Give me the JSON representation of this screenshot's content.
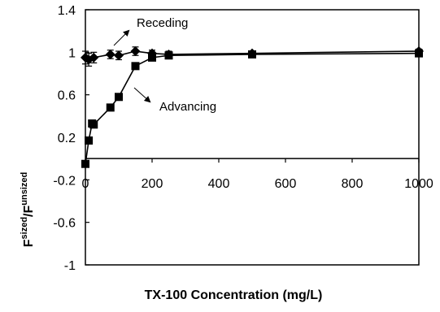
{
  "chart_data": {
    "type": "line",
    "title": "",
    "xlabel": "TX-100 Concentration (mg/L)",
    "ylabel": "F",
    "ylabel_sup1": "sized",
    "ylabel_slash": "/",
    "ylabel_main2": "F",
    "ylabel_sup2": "unsized",
    "xlim": [
      0,
      1000
    ],
    "ylim": [
      -1,
      1.4
    ],
    "x_ticks": [
      0,
      200,
      400,
      600,
      800,
      1000
    ],
    "y_ticks": [
      1.4,
      1,
      0.6,
      0.2,
      -0.2,
      -0.6,
      -1
    ],
    "x_tick_labels": [
      "0",
      "200",
      "400",
      "600",
      "800",
      "1000"
    ],
    "y_tick_labels": [
      "1.4",
      "1",
      "0.6",
      "0.2",
      "-0.2",
      "-0.6",
      "-1"
    ],
    "grid": false,
    "series": [
      {
        "name": "Receding",
        "marker": "diamond",
        "color": "#000000",
        "x": [
          0,
          10,
          25,
          75,
          100,
          150,
          200,
          250,
          500,
          1000
        ],
        "y": [
          0.95,
          0.93,
          0.95,
          0.98,
          0.97,
          1.01,
          0.99,
          0.98,
          0.99,
          1.01
        ],
        "error": [
          0.06,
          0.06,
          0.05,
          0.04,
          0.04,
          0.04,
          0.03,
          0.03,
          0.02,
          0.02
        ]
      },
      {
        "name": "Advancing",
        "marker": "square",
        "color": "#000000",
        "x": [
          0,
          10,
          20,
          25,
          75,
          100,
          150,
          200,
          250,
          500,
          1000
        ],
        "y": [
          -0.05,
          0.17,
          0.33,
          0.32,
          0.48,
          0.58,
          0.87,
          0.95,
          0.97,
          0.98,
          0.99
        ]
      }
    ],
    "annotations": [
      {
        "text": "Receding",
        "series": "Receding"
      },
      {
        "text": "Advancing",
        "series": "Advancing"
      }
    ]
  }
}
